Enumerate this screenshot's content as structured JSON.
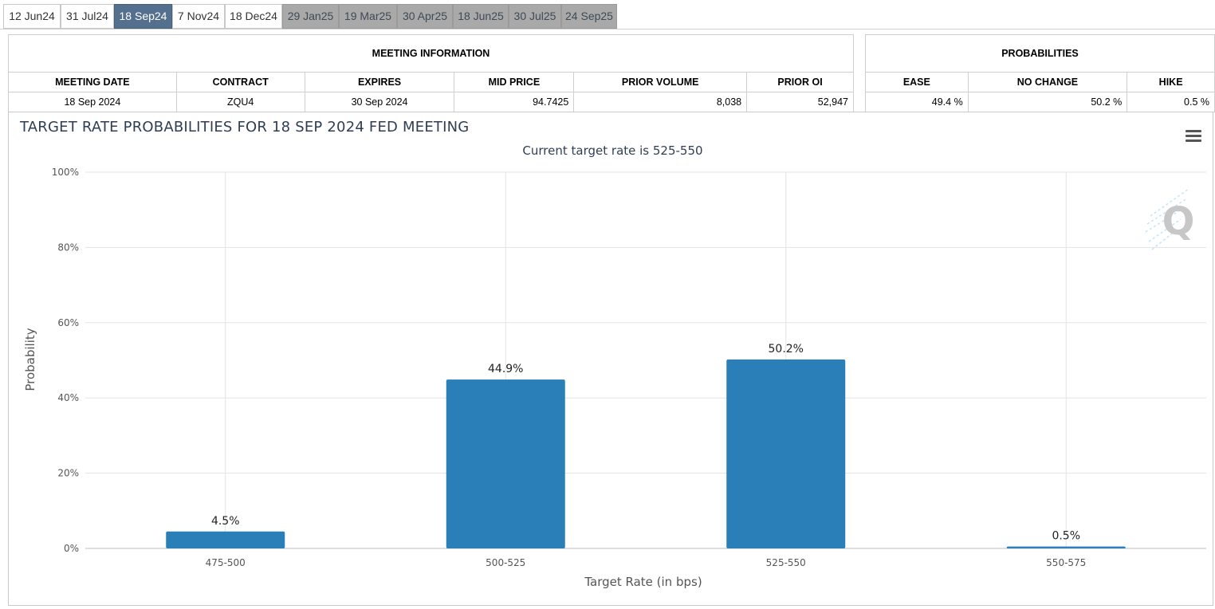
{
  "tabs": [
    {
      "label": "12 Jun24",
      "state": "normal"
    },
    {
      "label": "31 Jul24",
      "state": "normal"
    },
    {
      "label": "18 Sep24",
      "state": "active"
    },
    {
      "label": "7 Nov24",
      "state": "normal"
    },
    {
      "label": "18 Dec24",
      "state": "normal"
    },
    {
      "label": "29 Jan25",
      "state": "disabled"
    },
    {
      "label": "19 Mar25",
      "state": "disabled"
    },
    {
      "label": "30 Apr25",
      "state": "disabled"
    },
    {
      "label": "18 Jun25",
      "state": "disabled"
    },
    {
      "label": "30 Jul25",
      "state": "disabled"
    },
    {
      "label": "24 Sep25",
      "state": "disabled"
    }
  ],
  "meeting_info": {
    "title": "MEETING INFORMATION",
    "headers": {
      "meeting_date": "MEETING DATE",
      "contract": "CONTRACT",
      "expires": "EXPIRES",
      "mid_price": "MID PRICE",
      "prior_volume": "PRIOR VOLUME",
      "prior_oi": "PRIOR OI"
    },
    "values": {
      "meeting_date": "18 Sep 2024",
      "contract": "ZQU4",
      "expires": "30 Sep 2024",
      "mid_price": "94.7425",
      "prior_volume": "8,038",
      "prior_oi": "52,947"
    }
  },
  "probabilities": {
    "title": "PROBABILITIES",
    "headers": {
      "ease": "EASE",
      "no_change": "NO CHANGE",
      "hike": "HIKE"
    },
    "values": {
      "ease": "49.4 %",
      "no_change": "50.2 %",
      "hike": "0.5 %"
    }
  },
  "chart": {
    "menu_icon": "hamburger-menu-icon",
    "watermark_icon": "quikstrike-q-logo",
    "bar_color": "#2b7fb8"
  },
  "chart_data": {
    "type": "bar",
    "title": "TARGET RATE PROBABILITIES FOR 18 SEP 2024 FED MEETING",
    "subtitle": "Current target rate is 525-550",
    "xlabel": "Target Rate (in bps)",
    "ylabel": "Probability",
    "categories": [
      "475-500",
      "500-525",
      "525-550",
      "550-575"
    ],
    "values": [
      4.5,
      44.9,
      50.2,
      0.5
    ],
    "value_labels": [
      "4.5%",
      "44.9%",
      "50.2%",
      "0.5%"
    ],
    "ylim": [
      0,
      100
    ],
    "yticks": [
      0,
      20,
      40,
      60,
      80,
      100
    ],
    "ytick_labels": [
      "0%",
      "20%",
      "40%",
      "60%",
      "80%",
      "100%"
    ],
    "grid": true,
    "legend": "none"
  }
}
